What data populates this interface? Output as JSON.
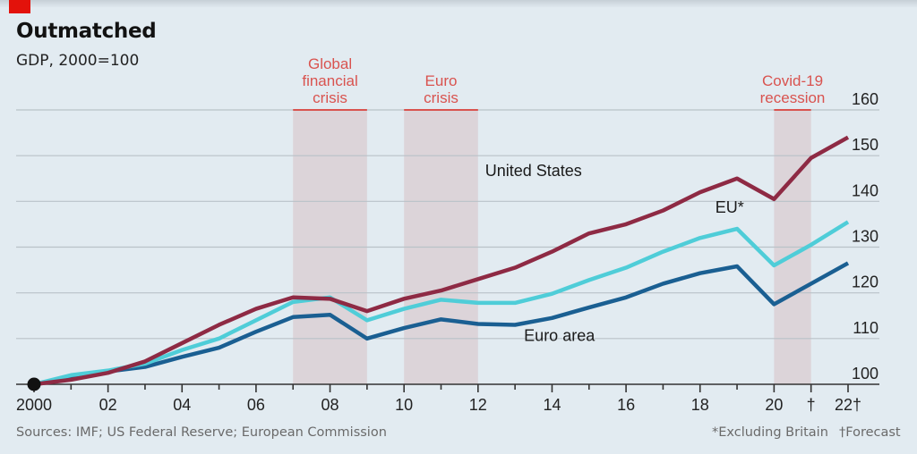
{
  "header": {
    "title": "Outmatched",
    "subtitle": "GDP, 2000=100"
  },
  "footer": {
    "source": "Sources: IMF; US Federal Reserve; European Commission",
    "note_eu": "*Excluding Britain",
    "note_forecast": "†Forecast"
  },
  "colors": {
    "background": "#e2ebf1",
    "us": "#8e2a44",
    "eu": "#4fcdd8",
    "euro_area": "#1a5f92",
    "shade": "#dcd4d9",
    "annotation": "#d9534f",
    "grid": "#b9c2c8",
    "axis": "#333333",
    "brand_red": "#e3120b"
  },
  "chart_data": {
    "type": "line",
    "title": "Outmatched",
    "subtitle": "GDP, 2000=100",
    "xlabel": "",
    "ylabel": "",
    "x": [
      2000,
      2001,
      2002,
      2003,
      2004,
      2005,
      2006,
      2007,
      2008,
      2009,
      2010,
      2011,
      2012,
      2013,
      2014,
      2015,
      2016,
      2017,
      2018,
      2019,
      2020,
      2021,
      2022
    ],
    "xlim": [
      2000,
      2022
    ],
    "ylim": [
      100,
      160
    ],
    "y_axis_side": "right",
    "y_ticks": [
      100,
      110,
      120,
      130,
      140,
      150,
      160
    ],
    "x_ticks": [
      {
        "value": 2000,
        "label": "2000"
      },
      {
        "value": 2002,
        "label": "02"
      },
      {
        "value": 2004,
        "label": "04"
      },
      {
        "value": 2006,
        "label": "06"
      },
      {
        "value": 2008,
        "label": "08"
      },
      {
        "value": 2010,
        "label": "10"
      },
      {
        "value": 2012,
        "label": "12"
      },
      {
        "value": 2014,
        "label": "14"
      },
      {
        "value": 2016,
        "label": "16"
      },
      {
        "value": 2018,
        "label": "18"
      },
      {
        "value": 2020,
        "label": "20"
      },
      {
        "value": 2021,
        "label": "†"
      },
      {
        "value": 2022,
        "label": "22†"
      }
    ],
    "grid": true,
    "legend": "inline-labels",
    "series": [
      {
        "name": "United States",
        "key": "us",
        "label_at": {
          "x": 2013.5,
          "y": 145.5
        },
        "values": [
          100,
          101,
          102.5,
          105,
          109,
          113,
          116.5,
          119,
          118.7,
          116,
          118.7,
          120.5,
          123,
          125.5,
          129,
          133,
          135,
          138,
          142,
          145,
          140.5,
          149.5,
          154
        ]
      },
      {
        "name": "EU*",
        "key": "eu",
        "label_at": {
          "x": 2018.8,
          "y": 137.5
        },
        "values": [
          100,
          102,
          103,
          104.5,
          107.5,
          110,
          114,
          118,
          119,
          114,
          116.5,
          118.5,
          117.8,
          117.8,
          119.8,
          122.8,
          125.5,
          129,
          132,
          134,
          126,
          130.5,
          135.5
        ]
      },
      {
        "name": "Euro area",
        "key": "euro_area",
        "label_at": {
          "x": 2014.2,
          "y": 109.5
        },
        "values": [
          100,
          101.5,
          102.8,
          103.8,
          106,
          108,
          111.5,
          114.7,
          115.2,
          110,
          112.3,
          114.2,
          113.2,
          113,
          114.5,
          116.8,
          119,
          122,
          124.3,
          125.8,
          117.5,
          122,
          126.5
        ]
      }
    ],
    "shaded_periods": [
      {
        "label": [
          "Global",
          "financial",
          "crisis"
        ],
        "from": 2007,
        "to": 2009
      },
      {
        "label": [
          "Euro",
          "crisis"
        ],
        "from": 2010,
        "to": 2012
      },
      {
        "label": [
          "Covid-19",
          "recession"
        ],
        "from": 2020,
        "to": 2021
      }
    ],
    "base_marker": {
      "x": 2000,
      "y": 100
    }
  }
}
